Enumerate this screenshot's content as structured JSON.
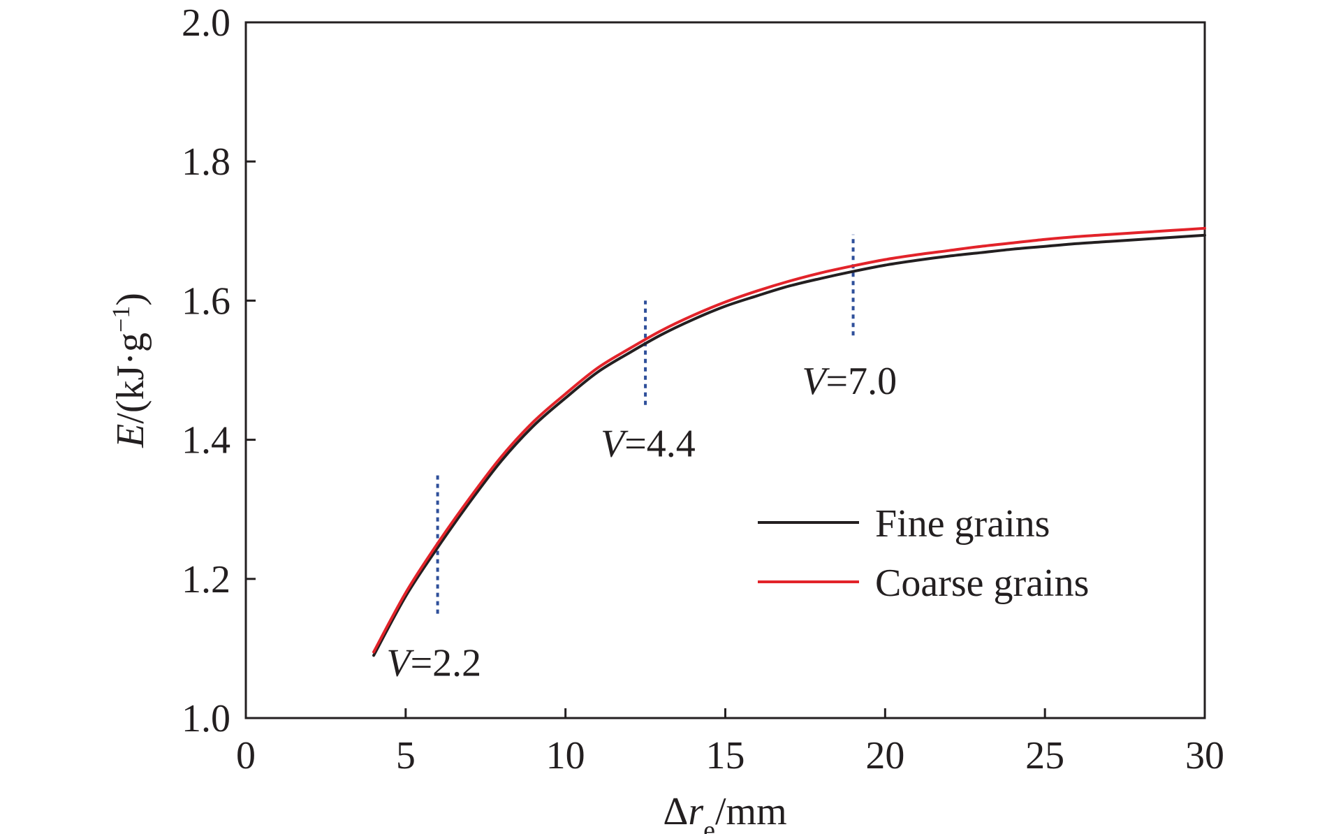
{
  "chart_data": {
    "type": "line",
    "xlabel": {
      "prefix": "Δ",
      "var": "r",
      "sub": "e",
      "unit": "/mm"
    },
    "ylabel": {
      "var": "E",
      "unit_main": "/(kJ·g",
      "unit_sup": "−1",
      "unit_close": ")"
    },
    "xlim": [
      0,
      30
    ],
    "ylim": [
      1.0,
      2.0
    ],
    "xticks": [
      0,
      5,
      10,
      15,
      20,
      25,
      30
    ],
    "xtick_labels": [
      "0",
      "5",
      "10",
      "15",
      "20",
      "25",
      "30"
    ],
    "yticks": [
      1.0,
      1.2,
      1.4,
      1.6,
      1.8,
      2.0
    ],
    "ytick_labels": [
      "1.0",
      "1.2",
      "1.4",
      "1.6",
      "1.8",
      "2.0"
    ],
    "grid": false,
    "legend_position": "lower-right",
    "series": [
      {
        "name": "Fine grains",
        "color": "#231f20",
        "x": [
          4,
          5,
          6,
          7,
          8,
          9,
          10,
          11,
          12,
          13,
          14,
          15,
          16,
          17,
          18,
          19,
          20,
          21,
          22,
          23,
          24,
          25,
          26,
          27,
          28,
          29,
          30
        ],
        "y": [
          1.09,
          1.175,
          1.245,
          1.31,
          1.37,
          1.42,
          1.46,
          1.497,
          1.525,
          1.551,
          1.573,
          1.592,
          1.607,
          1.621,
          1.632,
          1.642,
          1.651,
          1.658,
          1.664,
          1.669,
          1.674,
          1.678,
          1.682,
          1.685,
          1.688,
          1.691,
          1.694
        ]
      },
      {
        "name": "Coarse grains",
        "color": "#e2232a",
        "x": [
          4,
          5,
          6,
          7,
          8,
          9,
          10,
          11,
          12,
          13,
          14,
          15,
          16,
          17,
          18,
          19,
          20,
          21,
          22,
          23,
          24,
          25,
          26,
          27,
          28,
          29,
          30
        ],
        "y": [
          1.095,
          1.18,
          1.251,
          1.316,
          1.376,
          1.426,
          1.466,
          1.503,
          1.531,
          1.557,
          1.579,
          1.598,
          1.614,
          1.628,
          1.64,
          1.65,
          1.659,
          1.666,
          1.672,
          1.678,
          1.683,
          1.688,
          1.692,
          1.695,
          1.698,
          1.701,
          1.704
        ]
      }
    ],
    "markers": [
      {
        "x": 6.0,
        "y_from": 1.15,
        "y_to": 1.35,
        "color": "#2e4f9a",
        "label_var": "V",
        "label_val": "=2.2",
        "label_x": 4.4,
        "label_y": 1.08
      },
      {
        "x": 12.5,
        "y_from": 1.45,
        "y_to": 1.6,
        "color": "#2e4f9a",
        "label_var": "V",
        "label_val": "=4.4",
        "label_x": 11.1,
        "label_y": 1.395
      },
      {
        "x": 19.0,
        "y_from": 1.55,
        "y_to": 1.695,
        "color": "#2e4f9a",
        "label_var": "V",
        "label_val": "=7.0",
        "label_x": 17.4,
        "label_y": 1.485
      }
    ]
  }
}
